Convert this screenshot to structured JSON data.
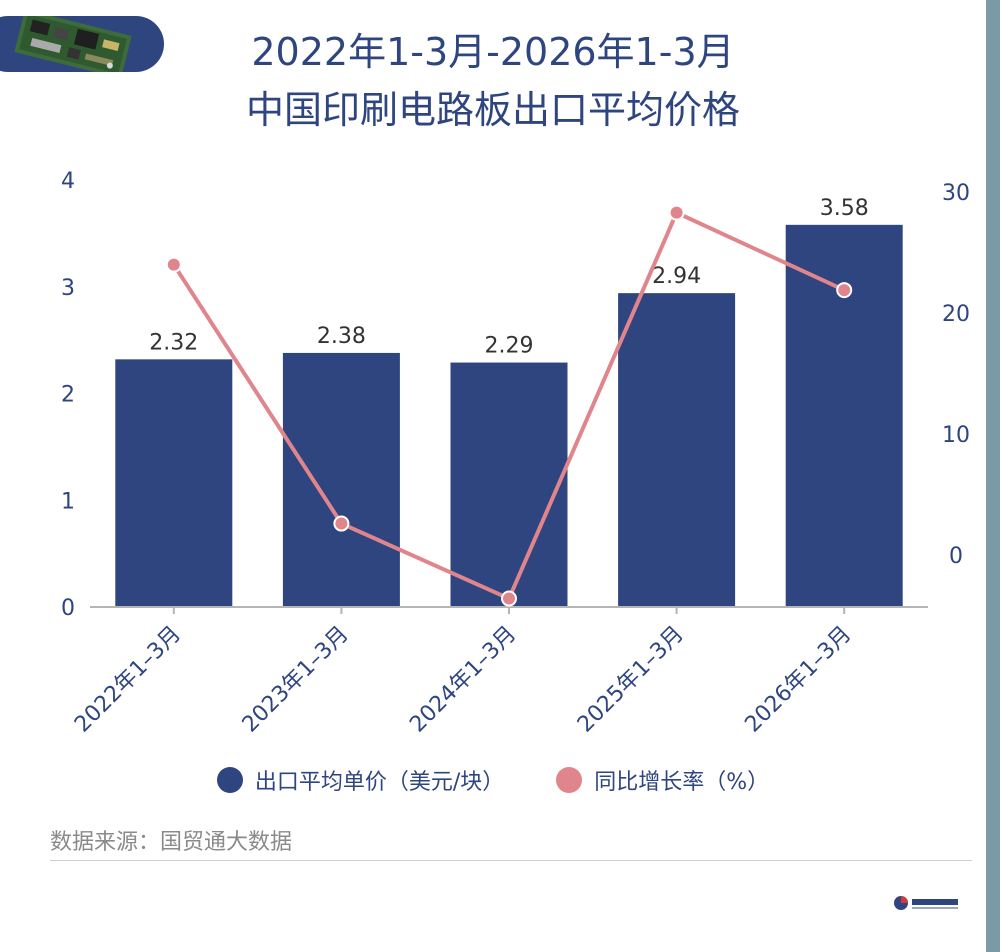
{
  "title_line1": "2022年1-3月-2026年1-3月",
  "title_line2": "中国印刷电路板出口平均价格",
  "source_text": "数据来源：国贸通大数据",
  "colors": {
    "bar": "#2e4580",
    "line": "#e0858c",
    "axis_text": "#2e4580"
  },
  "images": {
    "badge": "printed-circuit-board-photo",
    "footer": "brand-logo"
  },
  "chart_data": {
    "type": "bar",
    "categories": [
      "2022年1–3月",
      "2023年1–3月",
      "2024年1–3月",
      "2025年1–3月",
      "2026年1–3月"
    ],
    "series": [
      {
        "name": "出口平均单价（美元/块）",
        "type": "bar",
        "axis": "left",
        "values": [
          2.32,
          2.38,
          2.29,
          2.94,
          3.58
        ],
        "labels": [
          "2.32",
          "2.38",
          "2.29",
          "2.94",
          "3.58"
        ]
      },
      {
        "name": "同比增长率（%）",
        "type": "line",
        "axis": "right",
        "values": [
          24.0,
          2.6,
          -3.6,
          28.3,
          21.9
        ]
      }
    ],
    "y_left": {
      "ticks": [
        "0",
        "1",
        "2",
        "3",
        "4"
      ],
      "range": [
        0,
        4
      ]
    },
    "y_right": {
      "ticks": [
        "0",
        "10",
        "20",
        "30"
      ],
      "range": [
        -4.3,
        31
      ]
    },
    "grid": false,
    "legend_position": "bottom"
  }
}
